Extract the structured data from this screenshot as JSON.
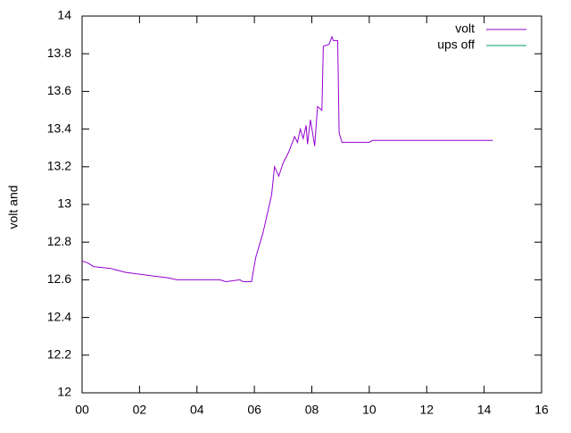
{
  "chart_data": {
    "type": "line",
    "ylabel": "volt and",
    "xlim": [
      0,
      16
    ],
    "xticks": [
      {
        "value": 0,
        "label": "00"
      },
      {
        "value": 2,
        "label": "02"
      },
      {
        "value": 4,
        "label": "04"
      },
      {
        "value": 6,
        "label": "06"
      },
      {
        "value": 8,
        "label": "08"
      },
      {
        "value": 10,
        "label": "10"
      },
      {
        "value": 12,
        "label": "12"
      },
      {
        "value": 14,
        "label": "14"
      },
      {
        "value": 16,
        "label": "16"
      }
    ],
    "ylim": [
      12,
      14
    ],
    "yticks": [
      12,
      12.2,
      12.4,
      12.6,
      12.8,
      13,
      13.2,
      13.4,
      13.6,
      13.8,
      14
    ],
    "legend": "top-right",
    "series": [
      {
        "name": "volt",
        "color": "#9400d3",
        "x": [
          0,
          0.2,
          0.4,
          1,
          1.5,
          2,
          2.5,
          3,
          3.3,
          4,
          4.8,
          5,
          5.5,
          5.6,
          5.9,
          6.05,
          6.3,
          6.6,
          6.7,
          6.85,
          7.0,
          7.2,
          7.4,
          7.5,
          7.6,
          7.7,
          7.8,
          7.85,
          7.95,
          8.1,
          8.2,
          8.35,
          8.4,
          8.6,
          8.7,
          8.75,
          8.9,
          8.95,
          9.05,
          9.5,
          10,
          10.1,
          11,
          12,
          13,
          14.3
        ],
        "values": [
          12.7,
          12.69,
          12.67,
          12.66,
          12.64,
          12.63,
          12.62,
          12.61,
          12.6,
          12.6,
          12.6,
          12.59,
          12.6,
          12.59,
          12.59,
          12.72,
          12.85,
          13.05,
          13.2,
          13.15,
          13.22,
          13.28,
          13.36,
          13.33,
          13.4,
          13.35,
          13.42,
          13.32,
          13.45,
          13.31,
          13.52,
          13.5,
          13.84,
          13.85,
          13.89,
          13.87,
          13.87,
          13.38,
          13.33,
          13.33,
          13.33,
          13.34,
          13.34,
          13.34,
          13.34,
          13.34
        ]
      },
      {
        "name": "ups off",
        "color": "#009e73",
        "x": [],
        "values": []
      }
    ]
  }
}
